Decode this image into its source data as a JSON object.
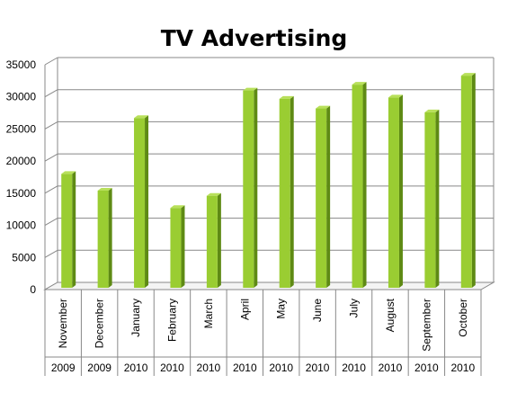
{
  "chart_data": {
    "type": "bar",
    "title": "TV Advertising",
    "categories": [
      "November",
      "December",
      "January",
      "February",
      "March",
      "April",
      "May",
      "June",
      "July",
      "August",
      "September",
      "October"
    ],
    "years": [
      "2009",
      "2009",
      "2010",
      "2010",
      "2010",
      "2010",
      "2010",
      "2010",
      "2010",
      "2010",
      "2010",
      "2010"
    ],
    "values": [
      18000,
      15400,
      26700,
      12700,
      14600,
      31000,
      29700,
      28200,
      31900,
      29900,
      27600,
      33300
    ],
    "ylim": [
      0,
      35000
    ],
    "yticks": [
      0,
      5000,
      10000,
      15000,
      20000,
      25000,
      30000,
      35000
    ],
    "grid": true,
    "legend": "none",
    "bar_front_color": "#9ACD32",
    "bar_side_color": "#5E8A14",
    "bar_top_color": "#B8E05A"
  }
}
